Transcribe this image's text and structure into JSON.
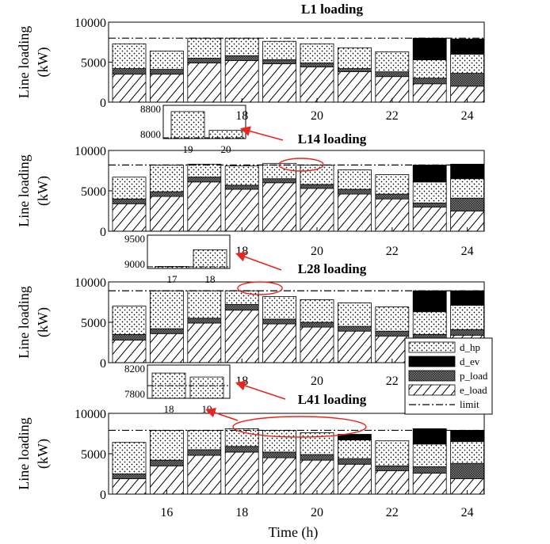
{
  "chart_data": [
    {
      "type": "bar",
      "title": "L1 loading",
      "ylabel": "Line loading (kW)",
      "ylim": [
        0,
        10000
      ],
      "yticks": [
        "10000",
        "5000",
        "0"
      ],
      "x": [
        15,
        16,
        17,
        18,
        19,
        20,
        21,
        22,
        23,
        24
      ],
      "xticks": [
        "18",
        "20",
        "22",
        "24"
      ],
      "limit": 8000,
      "series": [
        {
          "name": "e_load",
          "values": [
            3500,
            3500,
            4900,
            5200,
            4800,
            4400,
            3800,
            3200,
            2300,
            2000
          ]
        },
        {
          "name": "p_load",
          "values": [
            700,
            600,
            600,
            600,
            500,
            500,
            400,
            600,
            700,
            1600
          ]
        },
        {
          "name": "d_hp",
          "values": [
            3100,
            2300,
            2500,
            2200,
            2300,
            2400,
            2600,
            2500,
            2300,
            2400
          ]
        },
        {
          "name": "d_ev",
          "values": [
            0,
            0,
            0,
            0,
            0,
            0,
            0,
            0,
            2700,
            1900
          ]
        }
      ],
      "inset": {
        "categories": [
          "19",
          "20"
        ],
        "values": [
          8650,
          8200
        ],
        "yticks": [
          "8800",
          "8000"
        ],
        "ylim": [
          8000,
          8800
        ],
        "limit": 8020
      }
    },
    {
      "type": "bar",
      "title": "L14 loading",
      "ylabel": "Line loading (kW)",
      "ylim": [
        0,
        10000
      ],
      "yticks": [
        "10000",
        "5000",
        "0"
      ],
      "x": [
        15,
        16,
        17,
        18,
        19,
        20,
        21,
        22,
        23,
        24
      ],
      "xticks": [
        "18",
        "20",
        "22",
        "24"
      ],
      "limit": 8200,
      "series": [
        {
          "name": "e_load",
          "values": [
            3400,
            4300,
            6100,
            5200,
            6000,
            5300,
            4600,
            4000,
            3000,
            2500
          ]
        },
        {
          "name": "p_load",
          "values": [
            600,
            600,
            600,
            500,
            500,
            500,
            600,
            600,
            500,
            1600
          ]
        },
        {
          "name": "d_hp",
          "values": [
            2700,
            3300,
            1600,
            2400,
            1900,
            2400,
            2400,
            2400,
            2600,
            2400
          ]
        },
        {
          "name": "d_ev",
          "values": [
            0,
            0,
            0,
            0,
            0,
            0,
            0,
            0,
            2100,
            1800
          ]
        }
      ],
      "inset": {
        "categories": [
          "17",
          "18"
        ],
        "values": [
          8850,
          9250
        ],
        "yticks": [
          "9500",
          "9000"
        ],
        "ylim": [
          8800,
          9600
        ],
        "limit": 8840
      }
    },
    {
      "type": "bar",
      "title": "L28 loading",
      "ylabel": "Line loading (kW)",
      "ylim": [
        0,
        10000
      ],
      "yticks": [
        "10000",
        "5000",
        "0"
      ],
      "x": [
        15,
        16,
        17,
        18,
        19,
        20,
        21,
        22,
        23,
        24
      ],
      "xticks": [
        "18",
        "20",
        "22",
        "24"
      ],
      "limit": 8900,
      "series": [
        {
          "name": "e_load",
          "values": [
            2800,
            3600,
            4900,
            6500,
            4800,
            4400,
            3900,
            3300,
            2800,
            3400
          ]
        },
        {
          "name": "p_load",
          "values": [
            700,
            600,
            600,
            700,
            600,
            600,
            600,
            600,
            700,
            700
          ]
        },
        {
          "name": "d_hp",
          "values": [
            3500,
            4700,
            3400,
            1700,
            2800,
            2800,
            2900,
            3000,
            2800,
            3000
          ]
        },
        {
          "name": "d_ev",
          "values": [
            0,
            0,
            0,
            0,
            0,
            0,
            0,
            0,
            2600,
            1800
          ]
        }
      ],
      "inset": {
        "categories": [
          "18",
          "19"
        ],
        "values": [
          8180,
          8120
        ],
        "yticks": [
          "8200",
          "7800"
        ],
        "ylim": [
          7800,
          8300
        ],
        "limit": 7990
      }
    },
    {
      "type": "bar",
      "title": "L41 loading",
      "ylabel": "Line loading (kW)",
      "xlabel": "Time (h)",
      "ylim": [
        0,
        10000
      ],
      "yticks": [
        "10000",
        "5000",
        "0"
      ],
      "x": [
        15,
        16,
        17,
        18,
        19,
        20,
        21,
        22,
        23,
        24
      ],
      "xticks": [
        "16",
        "18",
        "20",
        "22",
        "24"
      ],
      "limit": 7900,
      "series": [
        {
          "name": "e_load",
          "values": [
            1900,
            3500,
            4800,
            5200,
            4500,
            4200,
            3700,
            2900,
            2600,
            1900
          ]
        },
        {
          "name": "p_load",
          "values": [
            600,
            700,
            700,
            700,
            700,
            700,
            700,
            600,
            800,
            1900
          ]
        },
        {
          "name": "d_hp",
          "values": [
            3900,
            3700,
            2400,
            2200,
            2700,
            2700,
            2300,
            3100,
            2800,
            2700
          ]
        },
        {
          "name": "d_ev",
          "values": [
            0,
            0,
            0,
            0,
            0,
            0,
            700,
            0,
            1900,
            1400
          ]
        }
      ]
    }
  ],
  "legend": {
    "placement": "right",
    "items": [
      {
        "key": "d_hp",
        "label": "d_hp"
      },
      {
        "key": "d_ev",
        "label": "d_ev"
      },
      {
        "key": "p_load",
        "label": "p_load"
      },
      {
        "key": "e_load",
        "label": "e_load"
      },
      {
        "key": "limit",
        "label": "limit"
      }
    ]
  },
  "colors": {
    "limit": "#000000",
    "arrow": "#e8251f",
    "ellipse": "#e8251f",
    "d_ev": "#000000"
  }
}
